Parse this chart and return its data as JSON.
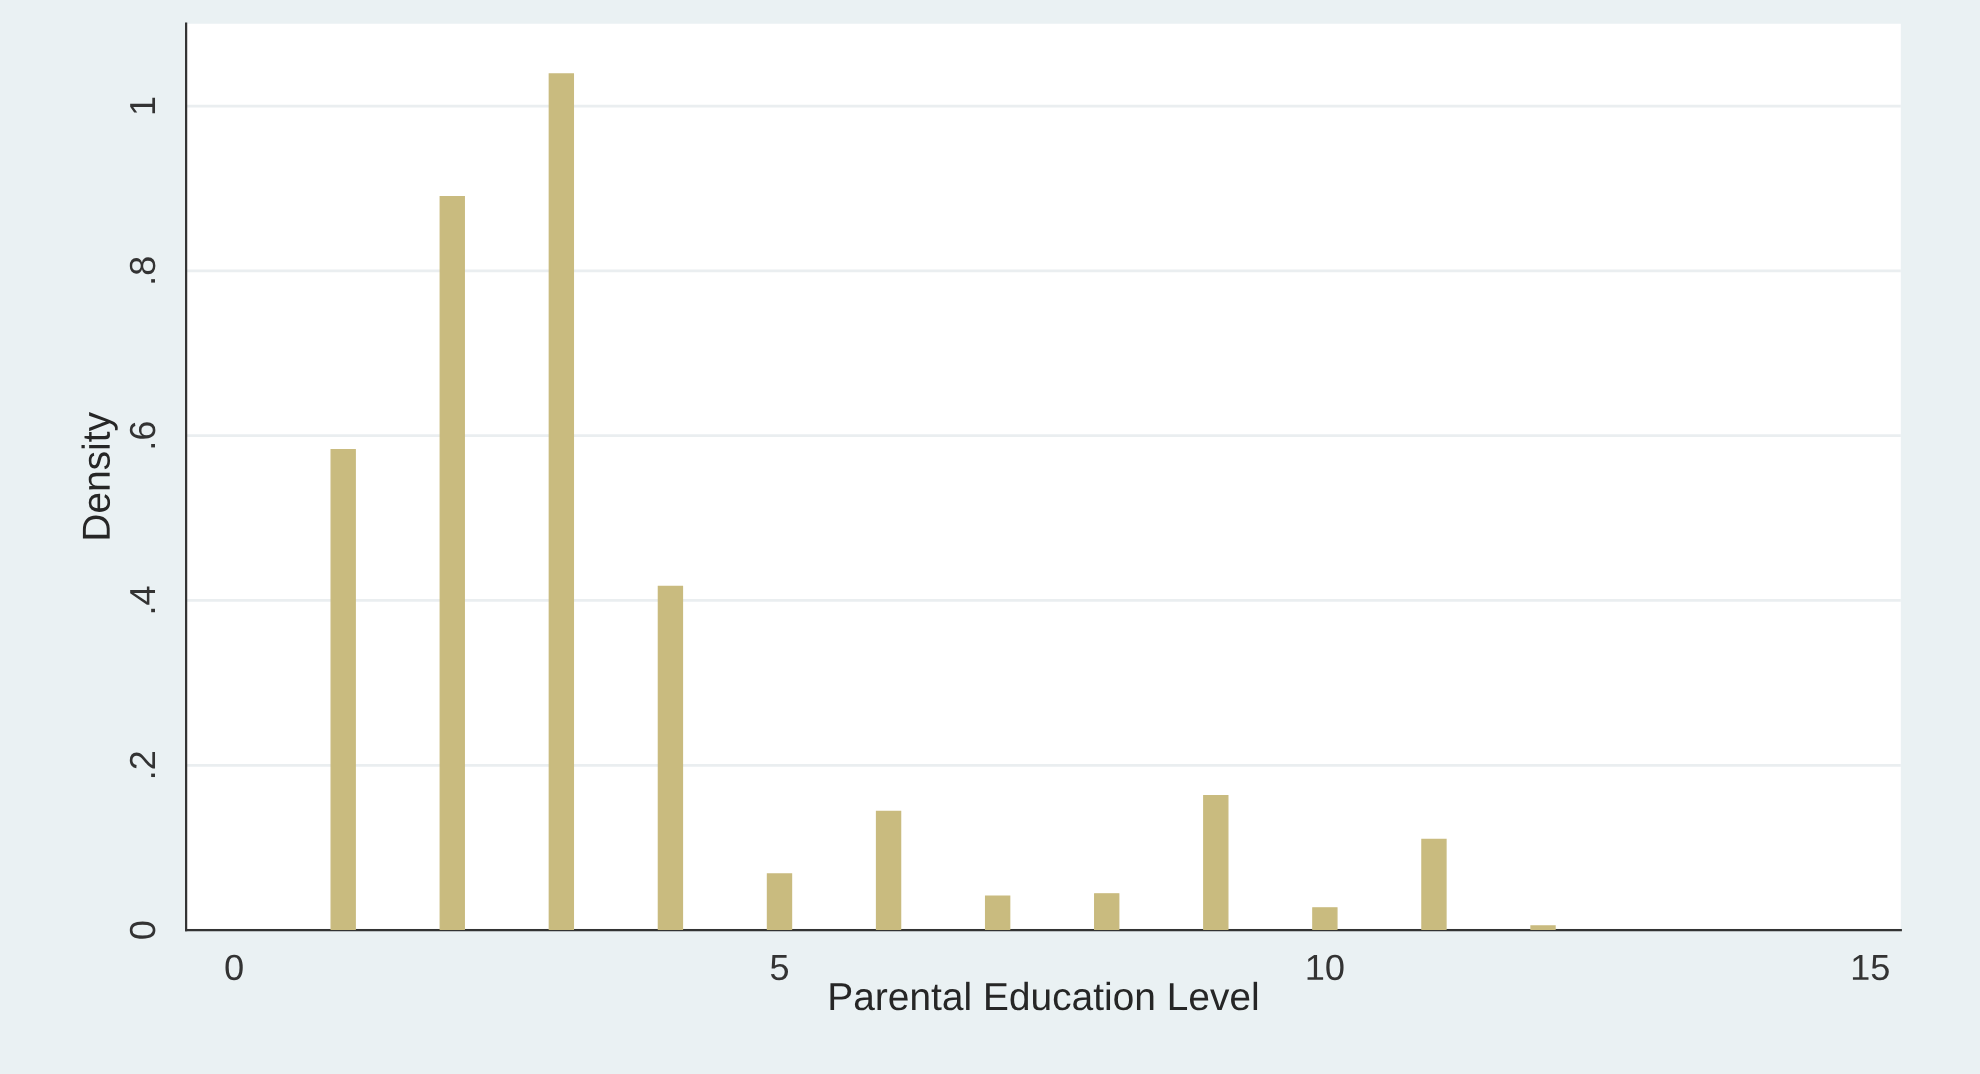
{
  "chart_data": {
    "type": "bar",
    "xlabel": "Parental Education Level",
    "ylabel": "Density",
    "x": [
      1,
      2,
      3,
      4,
      5,
      6,
      7,
      8,
      9,
      10,
      11,
      12
    ],
    "values": [
      0.583,
      0.89,
      1.039,
      0.417,
      0.068,
      0.144,
      0.041,
      0.044,
      0.163,
      0.027,
      0.11,
      0.005
    ],
    "color": "#c9bb7f",
    "xlim": [
      -0.44,
      15.28
    ],
    "xticks": [
      0,
      5,
      10,
      15
    ],
    "ylim": [
      0,
      1.1
    ],
    "yticks": [
      {
        "value": 0,
        "label": "0"
      },
      {
        "value": 0.2,
        "label": ".2"
      },
      {
        "value": 0.4,
        "label": ".4"
      },
      {
        "value": 0.6,
        "label": ".6"
      },
      {
        "value": 0.8,
        "label": ".8"
      },
      {
        "value": 1,
        "label": "1"
      }
    ],
    "grid": "y"
  }
}
